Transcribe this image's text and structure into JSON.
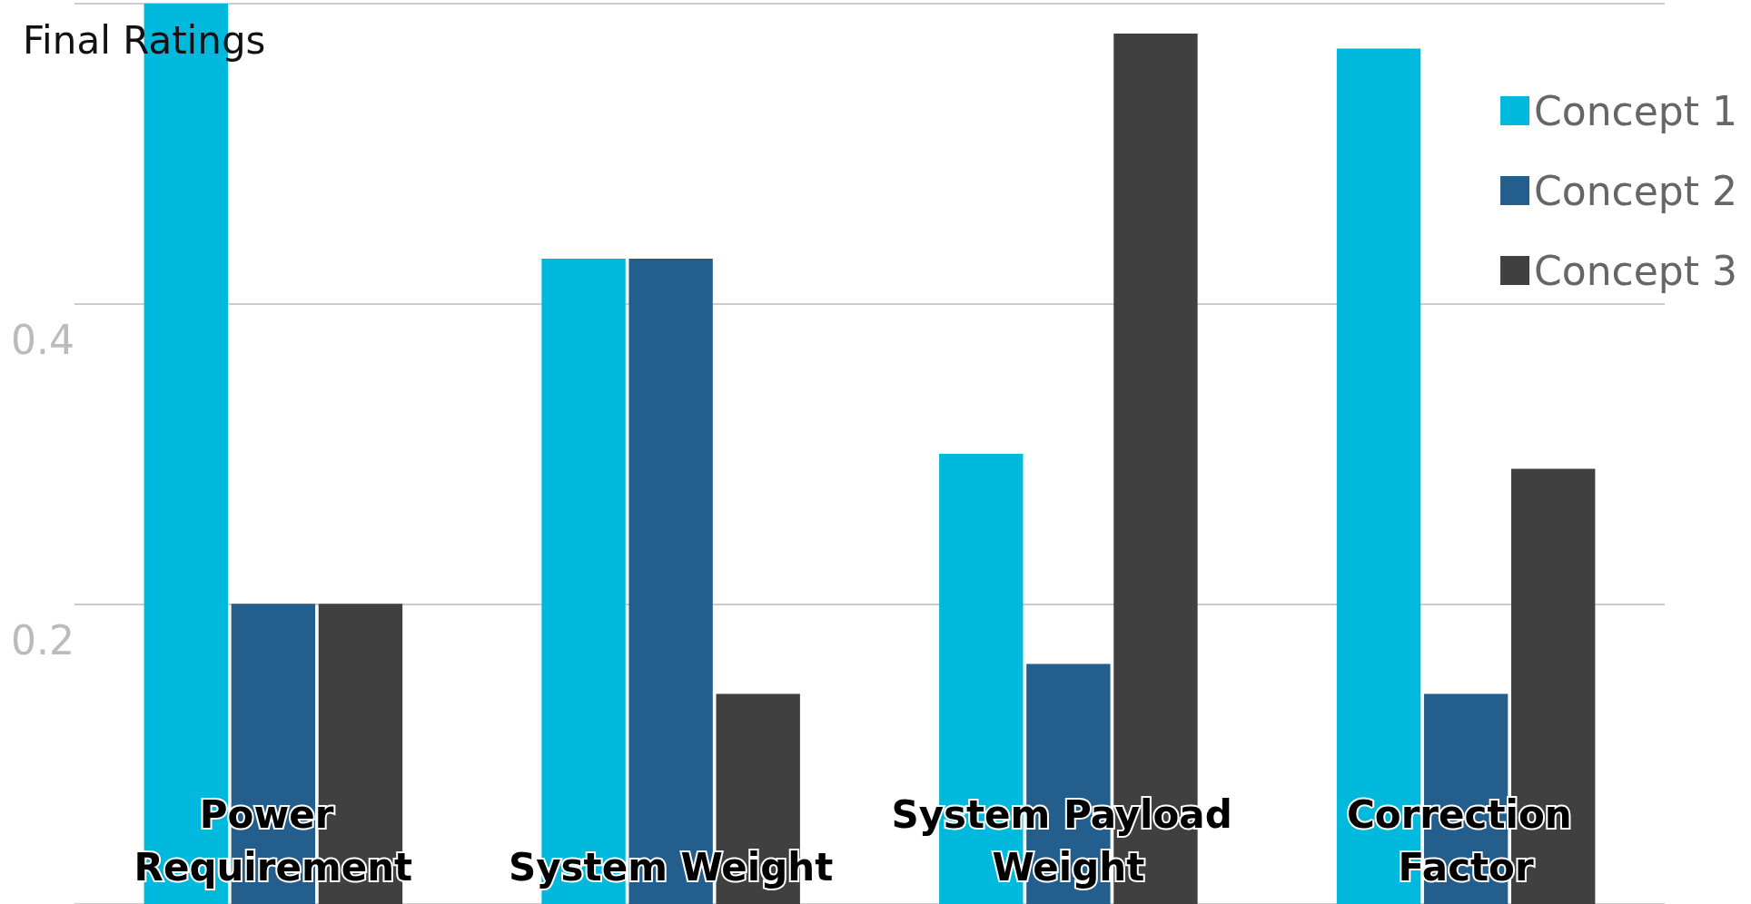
{
  "chart_data": {
    "type": "bar",
    "title": "Final Ratings",
    "categories": [
      "Power Requirement",
      "System Weight",
      "System Payload Weight",
      "Correction Factor"
    ],
    "series": [
      {
        "name": "Concept 1",
        "color": "#00b9dc",
        "values": [
          0.6,
          0.43,
          0.3,
          0.57
        ]
      },
      {
        "name": "Concept 2",
        "color": "#235e8d",
        "values": [
          0.2,
          0.43,
          0.16,
          0.14
        ]
      },
      {
        "name": "Concept 3",
        "color": "#404040",
        "values": [
          0.2,
          0.14,
          0.58,
          0.29
        ]
      }
    ],
    "ylim": [
      0,
      0.6
    ],
    "yticks": [
      {
        "value": 0,
        "label": null
      },
      0.2,
      0.4,
      {
        "value": 0.6,
        "label": null
      }
    ],
    "grid": "y",
    "legend": "top right"
  }
}
